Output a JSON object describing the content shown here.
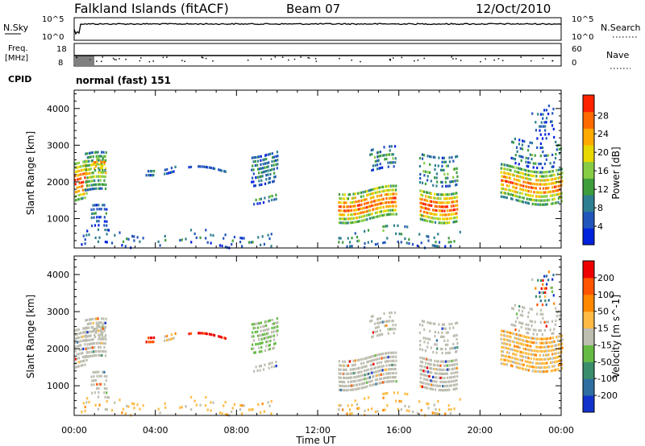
{
  "header": {
    "station": "Falkland Islands (fitACF)",
    "beam": "Beam 07",
    "date": "12/Oct/2010"
  },
  "noise_panel": {
    "left_label": "N.Sky",
    "right_label": "N.Search",
    "left_ticks": [
      "10^5",
      "10^0"
    ],
    "right_ticks": [
      "10^5",
      "10^0"
    ]
  },
  "freq_panel": {
    "left_label_line1": "Freq.",
    "left_label_line2": "[MHz]",
    "right_label": "Nave",
    "left_ticks": [
      "18",
      "8"
    ],
    "right_ticks": [
      "60",
      "0"
    ]
  },
  "cpid_panel": {
    "label": "CPID",
    "value": "normal (fast) 151"
  },
  "chart_data": [
    {
      "type": "heatmap",
      "title": "Power",
      "ylabel": "Slant Range [km]",
      "xlabel": "Time UT",
      "x_ticks": [
        "00:00",
        "04:00",
        "08:00",
        "12:00",
        "16:00",
        "20:00",
        "00:00"
      ],
      "y_ticks": [
        "1000",
        "2000",
        "3000",
        "4000"
      ],
      "ylim": [
        200,
        4500
      ],
      "colorbar": {
        "label": "Power [dB]",
        "ticks": [
          "4",
          "8",
          "12",
          "16",
          "20",
          "24",
          "28"
        ],
        "colors": [
          "#0022dd",
          "#2255bb",
          "#2e7f8f",
          "#3e9e3e",
          "#88cc44",
          "#e8d800",
          "#ffaa00",
          "#ff6a00",
          "#ff2200"
        ]
      }
    },
    {
      "type": "heatmap",
      "title": "Velocity",
      "ylabel": "Slant Range [km]",
      "xlabel": "Time UT",
      "x_ticks": [
        "00:00",
        "04:00",
        "08:00",
        "12:00",
        "16:00",
        "20:00",
        "00:00"
      ],
      "y_ticks": [
        "1000",
        "2000",
        "3000",
        "4000"
      ],
      "ylim": [
        200,
        4500
      ],
      "colorbar": {
        "label": "Velocity [m s^-1]",
        "ticks": [
          "200",
          "100",
          "50",
          "15",
          "-15",
          "-50",
          "-100",
          "-200"
        ],
        "colors": [
          "#1133cc",
          "#2e6ea0",
          "#3a8e6a",
          "#66bb44",
          "#bdbdb0",
          "#ffbb44",
          "#ff8800",
          "#ff5500",
          "#ee0000"
        ]
      }
    }
  ]
}
